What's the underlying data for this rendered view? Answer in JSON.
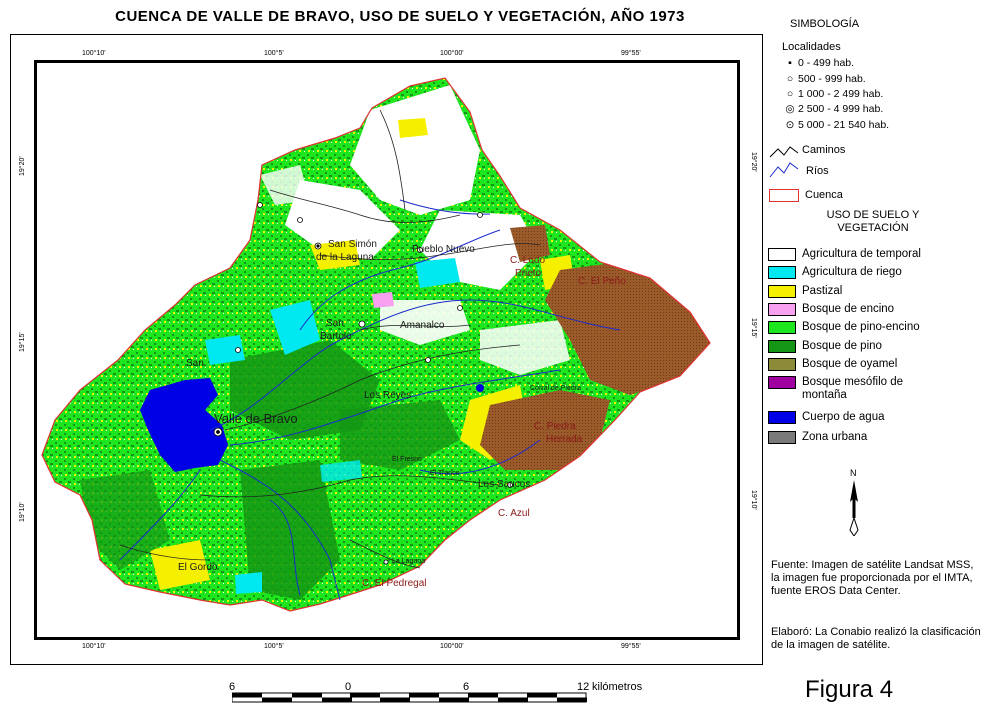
{
  "title": "CUENCA DE VALLE DE BRAVO, USO DE SUELO Y VEGETACIÓN, AÑO 1973",
  "coords": {
    "lon": [
      "100°10'",
      "100°5'",
      "100°00'",
      "99°55'"
    ],
    "lat": [
      "19°20'",
      "19°15'",
      "19°10'"
    ]
  },
  "places": {
    "san_simon": "San Simón",
    "de_la_laguna": "de la Laguna",
    "pueblo_nuevo": "Pueblo Nuevo",
    "c_lodo_prieto_1": "C. Lodo",
    "c_lodo_prieto_2": "Prieto",
    "c_el_peno": "C. El Peño",
    "san_bartolo_1": "San",
    "san_bartolo_2": "Bartolo",
    "amanalco": "Amanalco",
    "san": "San",
    "valle_de_bravo": "Valle de Bravo",
    "los_reyes": "Los Reyes",
    "corral_de_piedra": "Corral de Piedra",
    "c_piedra_herrada_1": "C. Piedra",
    "c_piedra_herrada_2": "Herrada",
    "los_saucos": "Los Saucos",
    "c_azul": "C. Azul",
    "el_gordo": "El Gordo",
    "la_laguna": "La Laguna",
    "c_el_pedregal": "C. El Pedregal",
    "el_fresno": "El Fresno",
    "el_tronco": "El Tronco"
  },
  "legend": {
    "title": "SIMBOLOGÍA",
    "localidades_title": "Localidades",
    "localidades": [
      {
        "symbol": "▪",
        "label": "0 - 499 hab."
      },
      {
        "symbol": "○",
        "label": "500 - 999 hab."
      },
      {
        "symbol": "○",
        "label": "1 000 - 2 499 hab."
      },
      {
        "symbol": "◎",
        "label": "2 500 - 4 999 hab."
      },
      {
        "symbol": "⊙",
        "label": "5 000 - 21 540 hab."
      }
    ],
    "caminos": "Caminos",
    "rios": "Ríos",
    "cuenca": "Cuenca",
    "uso_title_1": "USO DE SUELO Y",
    "uso_title_2": "VEGETACIÓN",
    "classes": [
      {
        "color": "#ffffff",
        "label": "Agricultura de temporal"
      },
      {
        "color": "#00e8f0",
        "label": "Agricultura de riego"
      },
      {
        "color": "#f5f000",
        "label": "Pastizal"
      },
      {
        "color": "#f7a0f0",
        "label": "Bosque de encino"
      },
      {
        "color": "#1ee61e",
        "label": "Bosque de pino-encino"
      },
      {
        "color": "#149614",
        "label": "Bosque de pino"
      },
      {
        "color": "#8b8b3a",
        "label": "Bosque de oyamel"
      },
      {
        "color": "#a000a0",
        "label": "Bosque mesófilo de"
      },
      {
        "color": "#0000e6",
        "label": "Cuerpo de agua"
      },
      {
        "color": "#7a7a7a",
        "label": "Zona urbana"
      }
    ],
    "mesofilo_line2": "montaña"
  },
  "north": "N",
  "source": "Fuente: Imagen de satélite Landsat MSS, la imagen fue proporcionada por el IMTA, fuente EROS Data Center.",
  "credit": "Elaboró: La Conabio realizó la clasificación de la imagen de satélite.",
  "figure_label": "Figura 4",
  "scale": {
    "labels": [
      "6",
      "0",
      "6",
      "12"
    ],
    "unit": "kilómetros"
  },
  "colors": {
    "temporal": "#ffffff",
    "riego": "#00e8f0",
    "pastizal": "#f5f000",
    "pino_encino": "#1ee61e",
    "pino": "#149614",
    "oyamel_brown": "#9a5a2a",
    "agua": "#0000e6",
    "rios": "#1a2acc",
    "cuenca": "#e03030"
  }
}
